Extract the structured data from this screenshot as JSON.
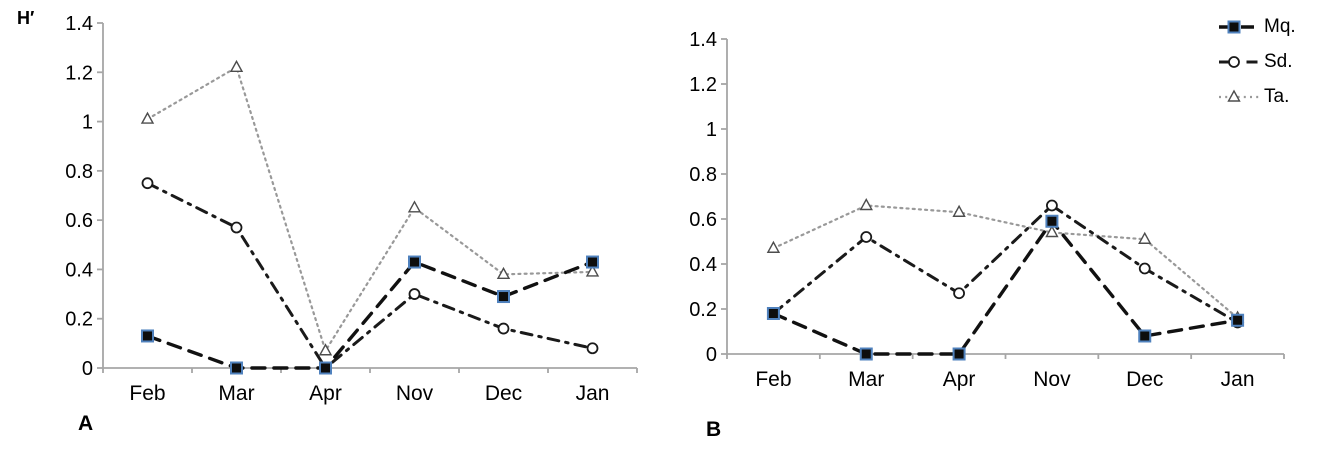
{
  "figure": {
    "y_axis_title": "H′",
    "panel_a_label": "A",
    "panel_b_label": "B",
    "colors": {
      "axis": "#a6a6a6",
      "line_black": "#111111",
      "line_dashdot": "#1a1a1a",
      "line_gray": "#999999",
      "marker_square_fill": "#0d0d0d",
      "marker_square_stroke": "#4f81bd",
      "marker_circle_stroke": "#1a1a1a",
      "marker_triangle_stroke": "#4d4d4d",
      "marker_open_fill": "#ffffff",
      "text": "#000000"
    }
  },
  "chart_data": [
    {
      "type": "line",
      "panel": "A",
      "title": "",
      "xlabel": "",
      "ylabel": "H′",
      "categories": [
        "Feb",
        "Mar",
        "Apr",
        "Nov",
        "Dec",
        "Jan"
      ],
      "ylim": [
        0,
        1.4
      ],
      "yticks": [
        0,
        0.2,
        0.4,
        0.6,
        0.8,
        1,
        1.2,
        1.4
      ],
      "ytick_labels": [
        "0",
        "0.2",
        "0.4",
        "0.6",
        "0.8",
        "1",
        "1.2",
        "1.4"
      ],
      "grid": false,
      "legend_visible": false,
      "series": [
        {
          "name": "Mq.",
          "line": "dash",
          "marker": "filled-square",
          "values": [
            0.13,
            0.0,
            0.0,
            0.43,
            0.29,
            0.43
          ]
        },
        {
          "name": "Sd.",
          "line": "dash-dot",
          "marker": "open-circle",
          "values": [
            0.75,
            0.57,
            0.0,
            0.3,
            0.16,
            0.08
          ]
        },
        {
          "name": "Ta.",
          "line": "dot",
          "marker": "open-triangle",
          "values": [
            1.01,
            1.22,
            0.07,
            0.65,
            0.38,
            0.39
          ]
        }
      ]
    },
    {
      "type": "line",
      "panel": "B",
      "title": "",
      "xlabel": "",
      "ylabel": "",
      "categories": [
        "Feb",
        "Mar",
        "Apr",
        "Nov",
        "Dec",
        "Jan"
      ],
      "ylim": [
        0,
        1.4
      ],
      "yticks": [
        0,
        0.2,
        0.4,
        0.6,
        0.8,
        1,
        1.2,
        1.4
      ],
      "ytick_labels": [
        "0",
        "0.2",
        "0.4",
        "0.6",
        "0.8",
        "1",
        "1.2",
        "1.4"
      ],
      "grid": false,
      "legend_visible": true,
      "legend_position": "top-right",
      "series": [
        {
          "name": "Mq.",
          "line": "dash",
          "marker": "filled-square",
          "values": [
            0.18,
            0.0,
            0.0,
            0.59,
            0.08,
            0.15
          ]
        },
        {
          "name": "Sd.",
          "line": "dash-dot",
          "marker": "open-circle",
          "values": [
            0.18,
            0.52,
            0.27,
            0.66,
            0.38,
            0.14
          ]
        },
        {
          "name": "Ta.",
          "line": "dot",
          "marker": "open-triangle",
          "values": [
            0.47,
            0.66,
            0.63,
            0.54,
            0.51,
            0.16
          ]
        }
      ]
    }
  ]
}
